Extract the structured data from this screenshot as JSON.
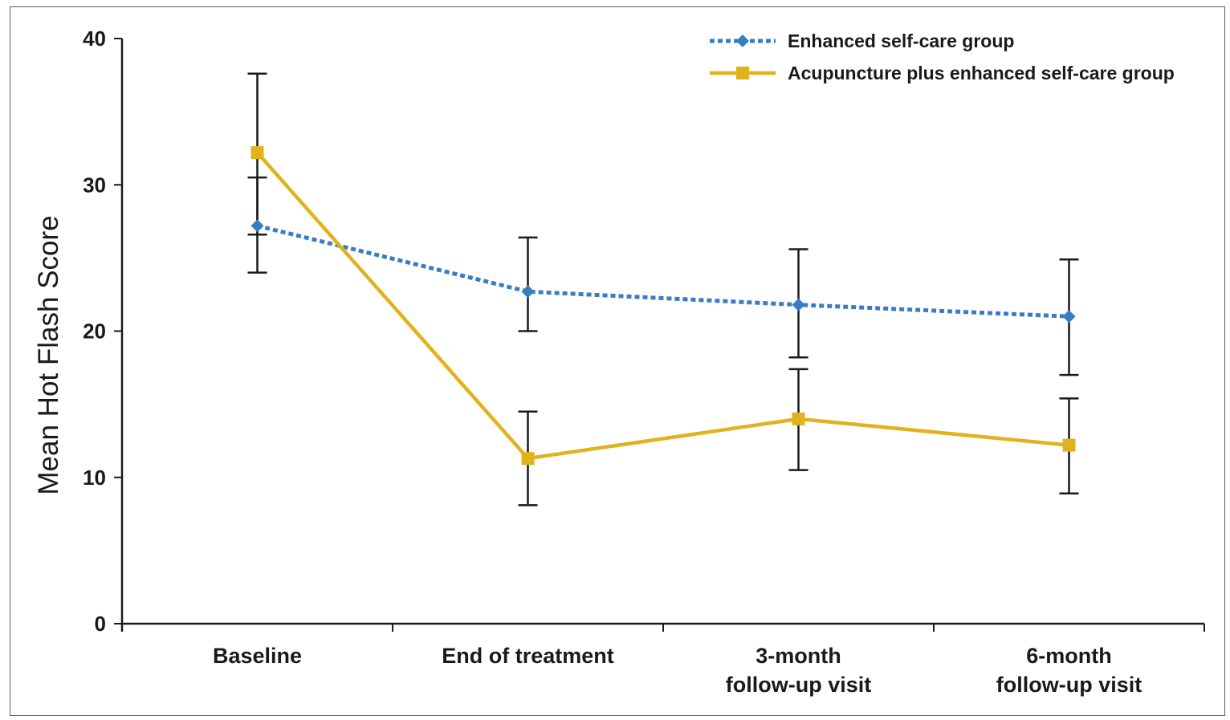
{
  "chart_data": {
    "type": "line",
    "title": "",
    "xlabel": "",
    "ylabel": "Mean Hot Flash Score",
    "ylim": [
      0,
      40
    ],
    "yticks": [
      "0",
      "10",
      "20",
      "30",
      "40"
    ],
    "categories": [
      [
        "Baseline"
      ],
      [
        "End of treatment"
      ],
      [
        "3-month",
        "follow-up visit"
      ],
      [
        "6-month",
        "follow-up visit"
      ]
    ],
    "legend": {
      "placement": "top-right"
    },
    "series": [
      {
        "name": "Enhanced self-care group",
        "color": "#3a7cc3",
        "line_style": "dotted",
        "marker": "diamond",
        "values": [
          27.2,
          22.7,
          21.8,
          21.0
        ],
        "error_low": [
          24.0,
          20.0,
          18.2,
          17.0
        ],
        "error_high": [
          30.5,
          26.4,
          25.6,
          24.9
        ]
      },
      {
        "name": "Acupuncture plus enhanced self-care group",
        "color": "#e0b31c",
        "line_style": "solid",
        "marker": "square",
        "values": [
          32.2,
          11.3,
          14.0,
          12.2
        ],
        "error_low": [
          26.6,
          8.1,
          10.5,
          8.9
        ],
        "error_high": [
          37.6,
          14.5,
          17.4,
          15.4
        ]
      }
    ]
  }
}
